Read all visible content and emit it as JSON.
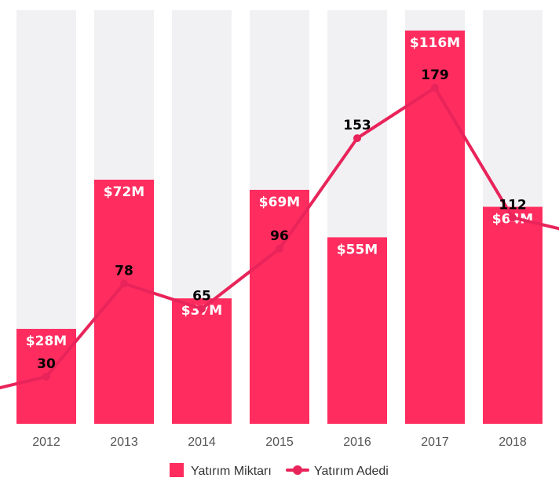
{
  "chart_data": {
    "type": "bar",
    "categories": [
      "2012",
      "2013",
      "2014",
      "2015",
      "2016",
      "2017",
      "2018"
    ],
    "series": [
      {
        "name": "Yatırım Miktarı",
        "type": "bar",
        "values": [
          28,
          72,
          37,
          69,
          55,
          116,
          64
        ],
        "labels": [
          "$28M",
          "$72M",
          "$37M",
          "$69M",
          "$55M",
          "$116M",
          "$64M"
        ],
        "color": "#ff2d5f"
      },
      {
        "name": "Yatırım Adedi",
        "type": "line",
        "values": [
          30,
          78,
          65,
          96,
          153,
          179,
          112
        ],
        "labels": [
          "30",
          "78",
          "65",
          "96",
          "153",
          "179",
          "112"
        ],
        "color": "#e8245a"
      }
    ],
    "background_bar_color": "#f1f1f4",
    "legend_position": "bottom",
    "grid": false
  }
}
